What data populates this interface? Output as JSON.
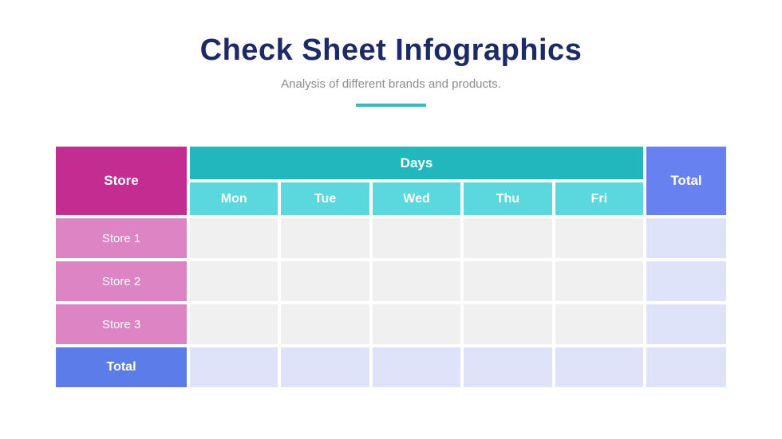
{
  "page": {
    "title": "Check Sheet Infographics",
    "subtitle": "Analysis of different brands and products.",
    "title_color": "#1e2a68",
    "subtitle_color": "#8c8c8c",
    "accent_color": "#38b7bc"
  },
  "table": {
    "corner_header": "Store",
    "group_header": "Days",
    "total_column_header": "Total",
    "day_columns": [
      "Mon",
      "Tue",
      "Wed",
      "Thu",
      "Fri"
    ],
    "rows": [
      {
        "label": "Store 1"
      },
      {
        "label": "Store 2"
      },
      {
        "label": "Store 3"
      }
    ],
    "total_row_label": "Total",
    "colors": {
      "store_header": "#c32d92",
      "days_header": "#22b7bc",
      "day_subheader": "#5bd7de",
      "total_header": "#6782f0",
      "store_row": "#dd84c5",
      "empty_data_cell": "#f0f0f0",
      "total_row": "#5b7ce9",
      "total_cell": "#dfe3f9",
      "grid_gap": "#ffffff"
    }
  },
  "chart_data": {
    "type": "table",
    "title": "Check Sheet Infographics",
    "subtitle": "Analysis of different brands and products.",
    "column_group": {
      "label": "Days",
      "spans": [
        "Mon",
        "Tue",
        "Wed",
        "Thu",
        "Fri"
      ]
    },
    "columns": [
      "Store",
      "Mon",
      "Tue",
      "Wed",
      "Thu",
      "Fri",
      "Total"
    ],
    "rows": [
      {
        "label": "Store 1",
        "values": [
          "",
          "",
          "",
          "",
          "",
          ""
        ]
      },
      {
        "label": "Store 2",
        "values": [
          "",
          "",
          "",
          "",
          "",
          ""
        ]
      },
      {
        "label": "Store 3",
        "values": [
          "",
          "",
          "",
          "",
          "",
          ""
        ]
      },
      {
        "label": "Total",
        "values": [
          "",
          "",
          "",
          "",
          "",
          ""
        ]
      }
    ]
  }
}
